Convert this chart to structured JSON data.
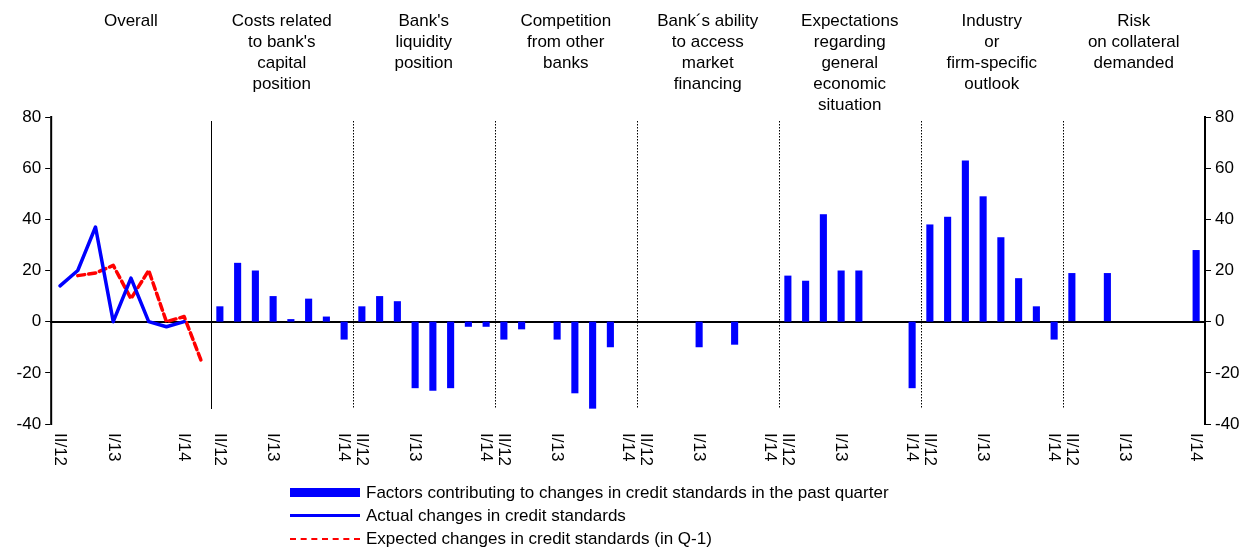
{
  "chart_data": [
    {
      "type": "line",
      "title": "Overall",
      "categories": [
        "II/12",
        null,
        null,
        "I/13",
        null,
        null,
        null,
        "I/14",
        null
      ],
      "series": [
        {
          "name": "Actual changes in credit standards",
          "color": "#0000ff",
          "values": [
            14,
            20,
            37,
            0,
            17,
            0,
            -2,
            0,
            null
          ]
        },
        {
          "name": "Expected changes in credit standards (in Q-1)",
          "color": "#ff0000",
          "line_style": "dashed",
          "values": [
            null,
            18,
            19,
            22,
            9,
            20,
            0,
            2,
            -16
          ]
        }
      ],
      "ylim": [
        -40,
        80
      ],
      "yticks": [
        -40,
        -20,
        0,
        20,
        40,
        60,
        80
      ],
      "marker": "none",
      "legend": "bottom"
    },
    {
      "type": "bar",
      "title": "Costs related\nto bank's\ncapital\nposition",
      "categories": [
        "II/12",
        null,
        null,
        "I/13",
        null,
        null,
        null,
        "I/14"
      ],
      "series": [
        {
          "name": "Factors contributing to changes in credit standards in the past quarter",
          "color": "#0000ff",
          "values": [
            6,
            23,
            20,
            10,
            1,
            9,
            2,
            -7
          ]
        }
      ],
      "ylim": [
        -40,
        80
      ],
      "yticks": [
        -40,
        -20,
        0,
        20,
        40,
        60,
        80
      ],
      "tick_labels": "x",
      "legend": "bottom"
    },
    {
      "type": "bar",
      "title": "Bank's\nliquidity\nposition",
      "categories": [
        "II/12",
        null,
        null,
        "I/13",
        null,
        null,
        null,
        "I/14"
      ],
      "values": [
        6,
        10,
        8,
        -26,
        -27,
        -26,
        -2,
        -2
      ],
      "color": "#0000ff",
      "ylim": [
        -40,
        80
      ],
      "yticks": [
        -40,
        -20,
        0,
        20,
        40,
        60,
        80
      ],
      "tick_labels": "x"
    },
    {
      "type": "bar",
      "title": "Competition\nfrom other\nbanks",
      "categories": [
        "II/12",
        null,
        null,
        "I/13",
        null,
        null,
        null,
        "I/14"
      ],
      "values": [
        -7,
        -3,
        0,
        -7,
        -28,
        -34,
        -10,
        0
      ],
      "color": "#0000ff",
      "ylim": [
        -40,
        80
      ],
      "yticks": [
        -40,
        -20,
        0,
        20,
        40,
        60,
        80
      ],
      "tick_labels": "x"
    },
    {
      "type": "bar",
      "title": "Bank´s ability\nto access\nmarket\nfinancing",
      "categories": [
        "II/12",
        null,
        null,
        "I/13",
        null,
        null,
        null,
        "I/14"
      ],
      "values": [
        0,
        0,
        0,
        -10,
        0,
        -9,
        0,
        0
      ],
      "color": "#0000ff",
      "ylim": [
        -40,
        80
      ],
      "yticks": [
        -40,
        -20,
        0,
        20,
        40,
        60,
        80
      ],
      "tick_labels": "x"
    },
    {
      "type": "bar",
      "title": "Expectations\nregarding\ngeneral\neconomic\nsituation",
      "categories": [
        "II/12",
        null,
        null,
        "I/13",
        null,
        null,
        null,
        "I/14"
      ],
      "values": [
        18,
        16,
        42,
        20,
        20,
        0,
        0,
        -26
      ],
      "color": "#0000ff",
      "ylim": [
        -40,
        80
      ],
      "yticks": [
        -40,
        -20,
        0,
        20,
        40,
        60,
        80
      ],
      "tick_labels": "x"
    },
    {
      "type": "bar",
      "title": "Industry\nor\nfirm-specific\noutlook",
      "categories": [
        "II/12",
        null,
        null,
        "I/13",
        null,
        null,
        null,
        "I/14"
      ],
      "values": [
        38,
        41,
        63,
        49,
        33,
        17,
        6,
        -7
      ],
      "color": "#0000ff",
      "ylim": [
        -40,
        80
      ],
      "yticks": [
        -40,
        -20,
        0,
        20,
        40,
        60,
        80
      ],
      "tick_labels": "x"
    },
    {
      "type": "bar",
      "title": "Risk\non collateral\ndemanded",
      "categories": [
        "II/12",
        null,
        null,
        "I/13",
        null,
        null,
        null,
        "I/14"
      ],
      "values": [
        19,
        0,
        19,
        0,
        0,
        0,
        0,
        28
      ],
      "color": "#0000ff",
      "ylim": [
        -40,
        80
      ],
      "yticks": [
        -40,
        -20,
        0,
        20,
        40,
        60,
        80
      ]
    }
  ]
}
